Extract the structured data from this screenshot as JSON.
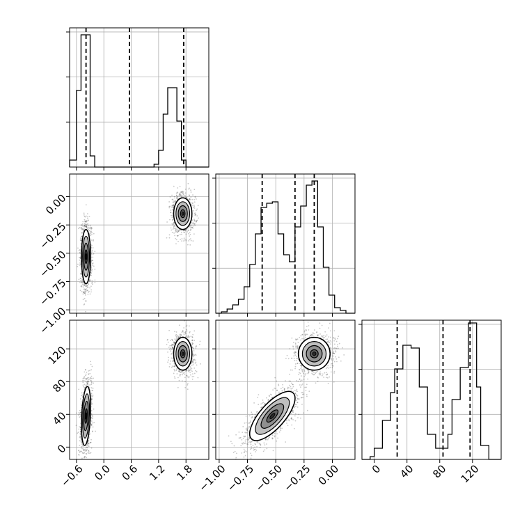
{
  "chart_data": {
    "type": "corner",
    "title": "",
    "colors": {
      "line": "#000000",
      "grid": "#b0b0b0",
      "fill_levels": [
        "#bfbfbf",
        "#8f8f8f",
        "#5f5f5f",
        "#2a2a2a"
      ]
    },
    "grid": true,
    "params": [
      {
        "range": [
          -0.75,
          2.3
        ],
        "ticks": [
          -0.6,
          0.0,
          0.6,
          1.2,
          1.8
        ],
        "tick_labels": [
          "−0.6",
          "0.0",
          "0.6",
          "1.2",
          "1.8"
        ]
      },
      {
        "range": [
          -1.03,
          0.2
        ],
        "ticks": [
          -1.0,
          -0.75,
          -0.5,
          -0.25,
          0.0
        ],
        "tick_labels": [
          "−1.00",
          "−0.75",
          "−0.50",
          "−0.25",
          "0.00"
        ]
      },
      {
        "range": [
          -15,
          155
        ],
        "ticks": [
          0,
          40,
          80,
          120
        ],
        "tick_labels": [
          "0",
          "40",
          "80",
          "120"
        ]
      }
    ],
    "histograms": [
      {
        "param": 0,
        "bin_edges": [
          -0.75,
          -0.6,
          -0.5,
          -0.4,
          -0.3,
          -0.2,
          1.1,
          1.2,
          1.3,
          1.4,
          1.5,
          1.6,
          1.7,
          1.8,
          1.9,
          2.0,
          2.3
        ],
        "counts": [
          0.05,
          0.55,
          0.95,
          0.95,
          0.08,
          0.0,
          0.02,
          0.12,
          0.38,
          0.57,
          0.57,
          0.33,
          0.05,
          0.0,
          0.0,
          0.0
        ],
        "quantiles": [
          -0.39,
          0.56,
          1.75
        ]
      },
      {
        "param": 1,
        "bin_edges": [
          -1.03,
          -0.98,
          -0.93,
          -0.88,
          -0.83,
          -0.78,
          -0.73,
          -0.68,
          -0.63,
          -0.58,
          -0.53,
          -0.48,
          -0.43,
          -0.38,
          -0.33,
          -0.28,
          -0.23,
          -0.18,
          -0.13,
          -0.08,
          -0.03,
          0.02,
          0.07,
          0.12,
          0.2
        ],
        "counts": [
          0.0,
          0.01,
          0.03,
          0.06,
          0.1,
          0.19,
          0.35,
          0.57,
          0.76,
          0.79,
          0.8,
          0.57,
          0.42,
          0.37,
          0.62,
          0.77,
          0.92,
          0.95,
          0.62,
          0.33,
          0.13,
          0.04,
          0.02,
          0.0
        ],
        "quantiles": [
          -0.62,
          -0.33,
          -0.16
        ]
      },
      {
        "param": 2,
        "bin_edges": [
          -15,
          -5,
          0,
          10,
          20,
          25,
          35,
          45,
          55,
          65,
          75,
          85,
          90,
          95,
          105,
          115,
          125,
          130,
          140,
          155
        ],
        "counts": [
          0.0,
          0.02,
          0.08,
          0.28,
          0.48,
          0.65,
          0.82,
          0.8,
          0.52,
          0.18,
          0.08,
          0.08,
          0.18,
          0.43,
          0.66,
          0.98,
          0.52,
          0.1,
          0.0
        ],
        "quantiles": [
          28,
          84,
          117
        ]
      }
    ],
    "scatter_panels": [
      {
        "x_param": 0,
        "y_param": 1,
        "clusters": [
          {
            "center": [
              -0.39,
              -0.53
            ],
            "sd": [
              0.05,
              0.12
            ],
            "corr": 0.0,
            "n": 1100
          },
          {
            "center": [
              1.73,
              -0.15
            ],
            "sd": [
              0.1,
              0.07
            ],
            "corr": 0.0,
            "n": 1000
          }
        ]
      },
      {
        "x_param": 0,
        "y_param": 2,
        "clusters": [
          {
            "center": [
              -0.39,
              38
            ],
            "sd": [
              0.05,
              18
            ],
            "corr": 0.3,
            "n": 1100
          },
          {
            "center": [
              1.73,
              114
            ],
            "sd": [
              0.1,
              10
            ],
            "corr": 0.0,
            "n": 1000
          }
        ]
      },
      {
        "x_param": 1,
        "y_param": 2,
        "clusters": [
          {
            "center": [
              -0.53,
              38
            ],
            "sd": [
              0.1,
              15
            ],
            "corr": 0.72,
            "n": 1100
          },
          {
            "center": [
              -0.16,
              114
            ],
            "sd": [
              0.07,
              10
            ],
            "corr": 0.0,
            "n": 1000
          }
        ]
      }
    ]
  }
}
